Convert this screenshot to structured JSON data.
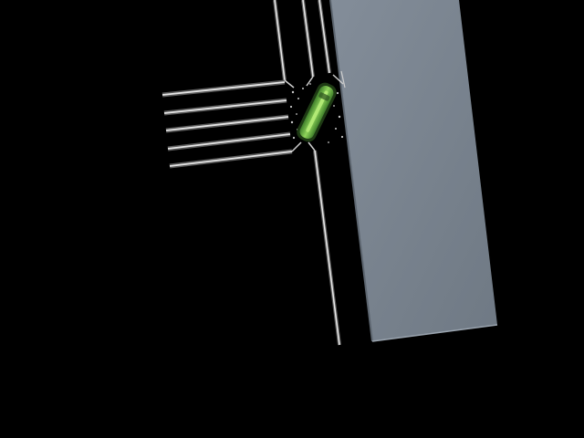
{
  "scene": {
    "background_color": "#000000",
    "building_color": "#7b8592",
    "building_edge_color": "#8f9aa6",
    "road_line_color": "#e6e6e6",
    "road_line_shadow_color": "#5a5a5a",
    "vehicle_color": "#6fbf45",
    "vehicle_highlight_color": "#b8ee7a",
    "vehicle_outline_color": "#1e3a14",
    "speck_color": "#c8c8c8",
    "vehicle_type_icon": "car-icon"
  }
}
